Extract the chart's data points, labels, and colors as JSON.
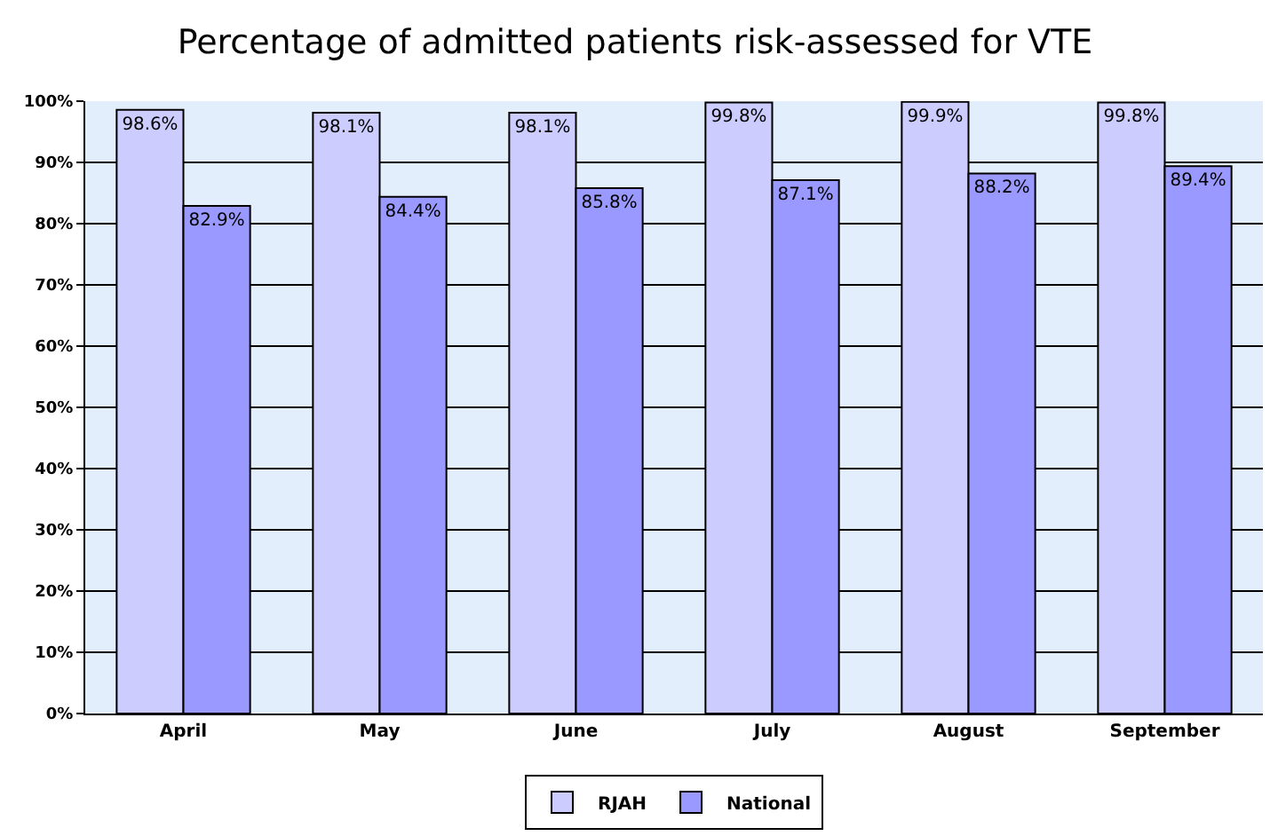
{
  "chart_data": {
    "type": "bar",
    "title": "Percentage of admitted patients risk-assessed for VTE",
    "categories": [
      "April",
      "May",
      "June",
      "July",
      "August",
      "September"
    ],
    "series": [
      {
        "name": "RJAH",
        "color": "#ccccff",
        "values": [
          98.6,
          98.1,
          98.1,
          99.8,
          99.9,
          99.8
        ],
        "value_labels": [
          "98.6%",
          "98.1%",
          "98.1%",
          "99.8%",
          "99.9%",
          "99.8%"
        ]
      },
      {
        "name": "National",
        "color": "#9999ff",
        "values": [
          82.9,
          84.4,
          85.8,
          87.1,
          88.2,
          89.4
        ],
        "value_labels": [
          "82.9%",
          "84.4%",
          "85.8%",
          "87.1%",
          "88.2%",
          "89.4%"
        ]
      }
    ],
    "ylim": [
      0,
      100
    ],
    "yticks": [
      {
        "value": 0,
        "label": "0%"
      },
      {
        "value": 10,
        "label": "10%"
      },
      {
        "value": 20,
        "label": "20%"
      },
      {
        "value": 30,
        "label": "30%"
      },
      {
        "value": 40,
        "label": "40%"
      },
      {
        "value": 50,
        "label": "50%"
      },
      {
        "value": 60,
        "label": "60%"
      },
      {
        "value": 70,
        "label": "70%"
      },
      {
        "value": 80,
        "label": "80%"
      },
      {
        "value": 90,
        "label": "90%"
      },
      {
        "value": 100,
        "label": "100%"
      }
    ],
    "grid": "y",
    "legend": "bottom"
  }
}
